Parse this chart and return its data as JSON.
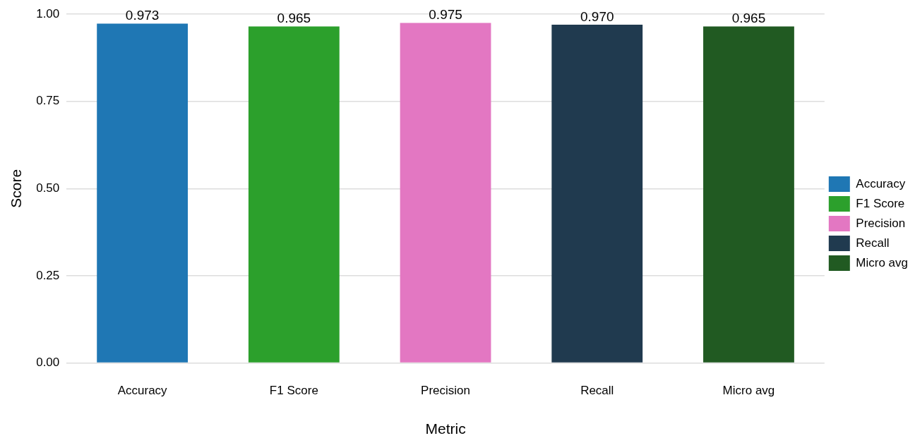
{
  "chart_data": {
    "type": "bar",
    "xlabel": "Metric",
    "ylabel": "Score",
    "categories": [
      "Accuracy",
      "F1 Score",
      "Precision",
      "Recall",
      "Micro avg"
    ],
    "series": [
      {
        "name": "Accuracy",
        "color": "#1f77b4",
        "values": [
          0.973,
          null,
          null,
          null,
          null
        ],
        "value_labels": [
          "0.973",
          null,
          null,
          null,
          null
        ]
      },
      {
        "name": "F1 Score",
        "color": "#2ca02c",
        "values": [
          null,
          0.965,
          null,
          null,
          null
        ],
        "value_labels": [
          null,
          "0.965",
          null,
          null,
          null
        ]
      },
      {
        "name": "Precision",
        "color": "#e377c2",
        "values": [
          null,
          null,
          0.975,
          null,
          null
        ],
        "value_labels": [
          null,
          null,
          "0.975",
          null,
          null
        ]
      },
      {
        "name": "Recall",
        "color": "#203a4f",
        "values": [
          null,
          null,
          null,
          0.97,
          null
        ],
        "value_labels": [
          null,
          null,
          null,
          "0.970",
          null
        ]
      },
      {
        "name": "Micro avg",
        "color": "#215a22",
        "values": [
          null,
          null,
          null,
          null,
          0.965
        ],
        "value_labels": [
          null,
          null,
          null,
          null,
          "0.965"
        ]
      }
    ],
    "ylim": [
      0,
      1
    ],
    "yticks": [
      {
        "value": 0,
        "label": "0.00"
      },
      {
        "value": 0.25,
        "label": "0.25"
      },
      {
        "value": 0.5,
        "label": "0.50"
      },
      {
        "value": 0.75,
        "label": "0.75"
      },
      {
        "value": 1,
        "label": "1.00"
      }
    ],
    "grid": "y",
    "legend": "right"
  }
}
